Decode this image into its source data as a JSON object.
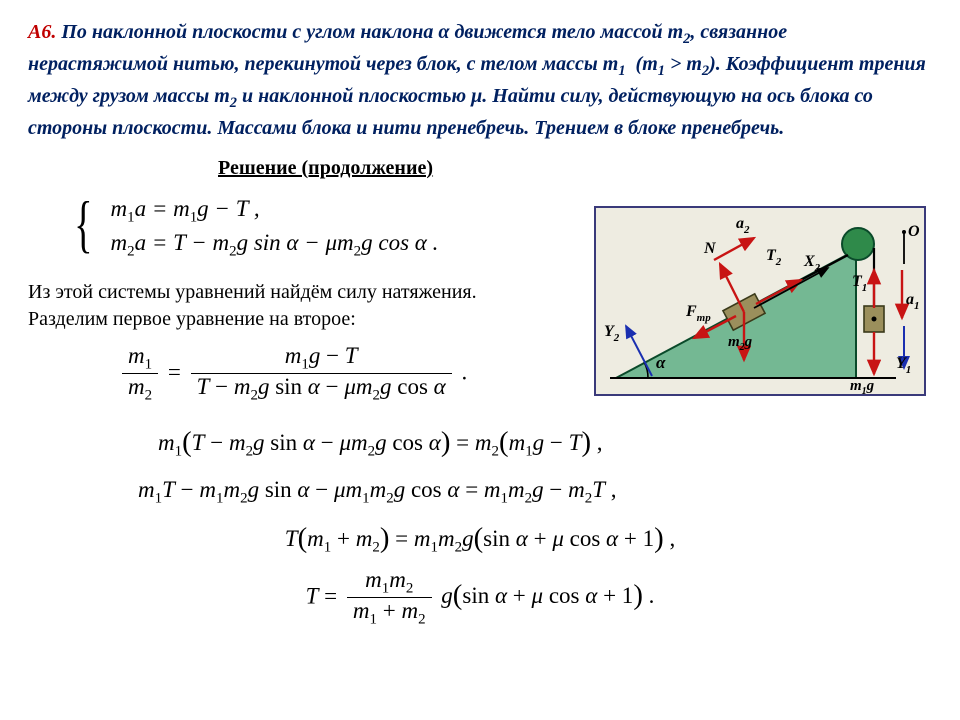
{
  "problem": {
    "label": "A6.",
    "text_html": "По наклонной плоскости с углом наклона &alpha; движется тело массой m<sub class=\"sub\">2</sub>, связанное нерастяжимой нитью, перекинутой через блок, с телом массы m<sub class=\"sub\">1</sub>&nbsp;&nbsp;(m<sub class=\"sub\">1</sub> &gt; m<sub class=\"sub\">2</sub>). Коэффициент трения между грузом массы m<sub class=\"sub\">2</sub> и наклонной плоскостью &mu;. Найти силу, действующую на ось блока со стороны плоскости. Массами блока и нити пренебречь. Трением в блоке пренебречь."
  },
  "solution_title": "Решение (продолжение)",
  "equations": {
    "sys1": "m<span class=\"sub2\">1</span>a = m<span class=\"sub2\">1</span>g &minus; T ,",
    "sys2": "m<span class=\"sub2\">2</span>a = T &minus; m<span class=\"sub2\">2</span>g sin &alpha; &minus; &mu;m<span class=\"sub2\">2</span>g cos &alpha; .",
    "narr1": "Из этой системы уравнений найдём силу натяжения.",
    "narr2": "Разделим первое уравнение на второе:",
    "frac_left_num": "<span class=\"i\">m</span><span class=\"sub2\">1</span>",
    "frac_left_den": "<span class=\"i\">m</span><span class=\"sub2\">2</span>",
    "frac_right_num": "<span class=\"i\">m</span><span class=\"sub2\">1</span><span class=\"i\">g</span> &minus; <span class=\"i\">T</span>",
    "frac_right_den": "<span class=\"i\">T</span> &minus; <span class=\"i\">m</span><span class=\"sub2\">2</span><span class=\"i\">g</span> sin <span class=\"i\">&alpha;</span> &minus; <span class=\"i\">&mu;m</span><span class=\"sub2\">2</span><span class=\"i\">g</span> cos <span class=\"i\">&alpha;</span>",
    "line3": "<span class=\"i\">m</span><span class=\"sub2\">1</span><span class=\"big-paren\">(</span><span class=\"i\">T</span> &minus; <span class=\"i\">m</span><span class=\"sub2\">2</span><span class=\"i\">g</span> sin <span class=\"i\">&alpha;</span> &minus; <span class=\"i\">&mu;m</span><span class=\"sub2\">2</span><span class=\"i\">g</span> cos <span class=\"i\">&alpha;</span><span class=\"big-paren\">)</span> = <span class=\"i\">m</span><span class=\"sub2\">2</span><span class=\"big-paren\">(</span><span class=\"i\">m</span><span class=\"sub2\">1</span><span class=\"i\">g</span> &minus; <span class=\"i\">T</span><span class=\"big-paren\">)</span> ,",
    "line4": "<span class=\"i\">m</span><span class=\"sub2\">1</span><span class=\"i\">T</span> &minus; <span class=\"i\">m</span><span class=\"sub2\">1</span><span class=\"i\">m</span><span class=\"sub2\">2</span><span class=\"i\">g</span> sin <span class=\"i\">&alpha;</span> &minus; <span class=\"i\">&mu;m</span><span class=\"sub2\">1</span><span class=\"i\">m</span><span class=\"sub2\">2</span><span class=\"i\">g</span> cos <span class=\"i\">&alpha;</span> = <span class=\"i\">m</span><span class=\"sub2\">1</span><span class=\"i\">m</span><span class=\"sub2\">2</span><span class=\"i\">g</span> &minus; <span class=\"i\">m</span><span class=\"sub2\">2</span><span class=\"i\">T</span> ,",
    "line5": "<span class=\"i\">T</span><span class=\"big-paren\">(</span><span class=\"i\">m</span><span class=\"sub2\">1</span> + <span class=\"i\">m</span><span class=\"sub2\">2</span><span class=\"big-paren\">)</span> = <span class=\"i\">m</span><span class=\"sub2\">1</span><span class=\"i\">m</span><span class=\"sub2\">2</span><span class=\"i\">g</span><span class=\"big-paren\">(</span>sin <span class=\"i\">&alpha;</span> + <span class=\"i\">&mu;</span> cos <span class=\"i\">&alpha;</span> + 1<span class=\"big-paren\">)</span> ,",
    "line6_num": "<span class=\"i\">m</span><span class=\"sub2\">1</span><span class=\"i\">m</span><span class=\"sub2\">2</span>",
    "line6_den": "<span class=\"i\">m</span><span class=\"sub2\">1</span> + <span class=\"i\">m</span><span class=\"sub2\">2</span>",
    "line6_tail": "<span class=\"i\">g</span><span class=\"big-paren\">(</span>sin <span class=\"i\">&alpha;</span> + <span class=\"i\">&mu;</span> cos <span class=\"i\">&alpha;</span> + 1<span class=\"big-paren\">)</span> ."
  },
  "diagram": {
    "bg": "#eeece1",
    "border": "#3a3a7a",
    "incline_fill": "#74b893",
    "incline_stroke": "#0a4a2a",
    "pulley_fill": "#2f8a4a",
    "block_fill": "#9b8f5c",
    "block_stroke": "#3a3a1a",
    "arrow_red": "#c81414",
    "arrow_blue": "#1a2fb0",
    "axis_black": "#000000",
    "text_color": "#000000",
    "alpha_label": "α",
    "labels": {
      "a2": "a",
      "a2_sub": "2",
      "N": "N",
      "T2": "T",
      "T2_sub": "2",
      "X2": "X",
      "X2_sub": "2",
      "Y2": "Y",
      "Y2_sub": "2",
      "Fmp": "F",
      "Fmp_sub": "mp",
      "m2g": "m",
      "m2g_sub": "2",
      "m2g_tail": "g",
      "O": "O",
      "T1": "T",
      "T1_sub": "1",
      "a1": "a",
      "a1_sub": "1",
      "Y1": "Y",
      "Y1_sub": "1",
      "m1g": "m",
      "m1g_sub": "1",
      "m1g_tail": "g"
    }
  },
  "style": {
    "label_color": "#c00000",
    "body_color": "#002060",
    "font_size_problem": 20,
    "font_size_eq": 23
  }
}
